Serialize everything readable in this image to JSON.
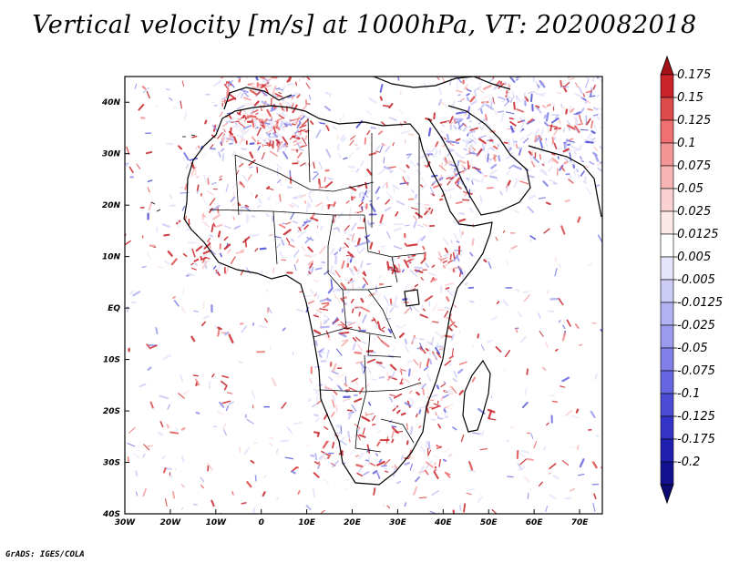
{
  "map": {
    "title": "Vertical velocity [m/s] at 1000hPa, VT: 2020082018",
    "credit": "GrADS: IGES/COLA",
    "extent": {
      "lon": [
        -30,
        75
      ],
      "lat": [
        -40,
        45
      ]
    },
    "lat_ticks": [
      {
        "value": 40,
        "label": "40N"
      },
      {
        "value": 30,
        "label": "30N"
      },
      {
        "value": 20,
        "label": "20N"
      },
      {
        "value": 10,
        "label": "10N"
      },
      {
        "value": 0,
        "label": "EQ"
      },
      {
        "value": -10,
        "label": "10S"
      },
      {
        "value": -20,
        "label": "20S"
      },
      {
        "value": -30,
        "label": "30S"
      },
      {
        "value": -40,
        "label": "40S"
      }
    ],
    "lon_ticks": [
      {
        "value": -30,
        "label": "30W"
      },
      {
        "value": -20,
        "label": "20W"
      },
      {
        "value": -10,
        "label": "10W"
      },
      {
        "value": 0,
        "label": "0"
      },
      {
        "value": 10,
        "label": "10E"
      },
      {
        "value": 20,
        "label": "20E"
      },
      {
        "value": 30,
        "label": "30E"
      },
      {
        "value": 40,
        "label": "40E"
      },
      {
        "value": 50,
        "label": "50E"
      },
      {
        "value": 60,
        "label": "60E"
      },
      {
        "value": 70,
        "label": "70E"
      }
    ]
  },
  "colorbar": {
    "colors": [
      "#a51218",
      "#c8242a",
      "#dd4b4b",
      "#ee7070",
      "#f29595",
      "#f6b4b4",
      "#f9d1d1",
      "#fce8e8",
      "#ffffff",
      "#e4e4fb",
      "#cbcbf6",
      "#b2b2f2",
      "#9a9aee",
      "#8080e8",
      "#6666e0",
      "#4c4cd6",
      "#3333c8",
      "#1f1fb0",
      "#121290",
      "#0a0a72"
    ],
    "labels": [
      "0.175",
      "0.15",
      "0.125",
      "0.1",
      "0.075",
      "0.05",
      "0.025",
      "0.0125",
      "0.005",
      "-0.005",
      "-0.0125",
      "-0.025",
      "-0.05",
      "-0.075",
      "-0.1",
      "-0.125",
      "-0.175",
      "-0.2"
    ]
  }
}
